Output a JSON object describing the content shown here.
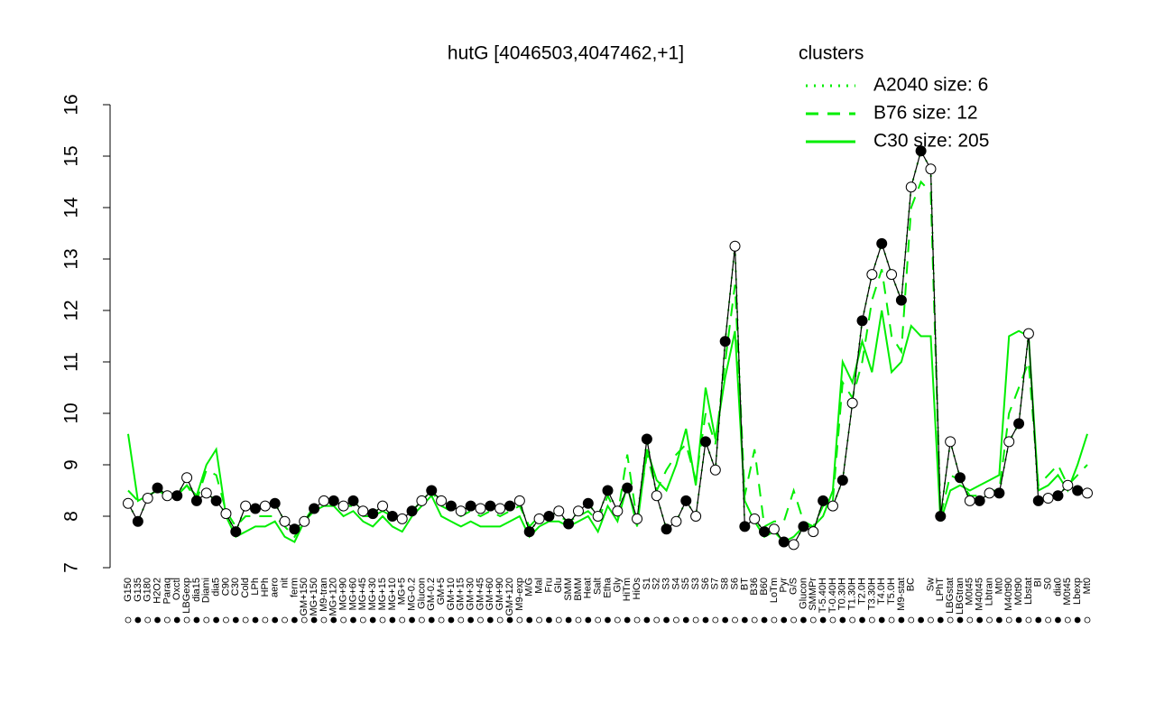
{
  "chart_data": {
    "type": "line",
    "title": "hutG [4046503,4047462,+1]",
    "legend_title": "clusters",
    "legend_color": "#00ee00",
    "ylim": [
      7,
      16
    ],
    "yticks": [
      7,
      8,
      9,
      10,
      11,
      12,
      13,
      14,
      15,
      16
    ],
    "categories": [
      "G150",
      "G135",
      "G180",
      "H2O2",
      "Paraq",
      "Oxctl",
      "LBGexp",
      "dia15",
      "Diami",
      "dia5",
      "C90",
      "C30",
      "Cold",
      "LPh",
      "HPh",
      "aero",
      "nit",
      "ferm",
      "GM+150",
      "MG+150",
      "M9-tran",
      "MG+120",
      "MG+90",
      "MG+60",
      "MG+45",
      "MG+30",
      "MG+15",
      "MG+10",
      "MG+5",
      "MG-0.2",
      "Glucon",
      "GM-0.2",
      "GM+5",
      "GM+10",
      "GM+15",
      "GM+30",
      "GM+45",
      "GM+60",
      "GM+90",
      "GM+120",
      "M9-exp",
      "M/G",
      "Mal",
      "Fru",
      "Glu",
      "SMM",
      "BMM",
      "Heat",
      "Salt",
      "Etha",
      "Gly",
      "HiTm",
      "HiOs",
      "S1",
      "S2",
      "S3",
      "S4",
      "S5",
      "S3",
      "S6",
      "S7",
      "S8",
      "S6",
      "BT",
      "B36",
      "B60",
      "LoTm",
      "Pyr",
      "G/S",
      "Glucon",
      "SMMPr",
      "T-5.40H",
      "T-0.40H",
      "T0.30H",
      "T1.30H",
      "T2.0H",
      "T3.30H",
      "T4.0H",
      "T5.0H",
      "M9-stat",
      "BC",
      null,
      "Sw",
      "LPhT",
      "LBGstat",
      "LBGtran",
      "M0t45",
      "M40t45",
      "Lbtran",
      "Mt0",
      "M40t90",
      "M0t90",
      "Lbstat",
      "BI",
      "S0",
      "dia0",
      "M0t45",
      "Lbexp",
      "Mt0"
    ],
    "values": [
      8.25,
      7.9,
      8.35,
      8.55,
      8.4,
      8.4,
      8.75,
      8.3,
      8.45,
      8.3,
      8.05,
      7.7,
      8.2,
      8.15,
      8.2,
      8.25,
      7.9,
      7.75,
      7.9,
      8.15,
      8.3,
      8.3,
      8.2,
      8.3,
      8.1,
      8.05,
      8.2,
      8.0,
      7.95,
      8.1,
      8.3,
      8.5,
      8.3,
      8.2,
      8.1,
      8.2,
      8.15,
      8.2,
      8.15,
      8.2,
      8.3,
      7.7,
      7.95,
      8.0,
      8.1,
      7.85,
      8.1,
      8.25,
      8.0,
      8.5,
      8.1,
      8.55,
      7.95,
      9.5,
      8.4,
      7.75,
      7.9,
      8.3,
      8.0,
      9.45,
      8.9,
      11.4,
      13.25,
      7.8,
      7.95,
      7.7,
      7.75,
      7.5,
      7.45,
      7.8,
      7.7,
      8.3,
      8.2,
      8.7,
      10.2,
      11.8,
      12.7,
      13.3,
      12.7,
      12.2,
      14.4,
      15.1,
      14.75,
      8.0,
      9.45,
      8.75,
      8.3,
      8.3,
      8.45,
      8.45,
      9.45,
      9.8,
      11.55,
      8.3,
      8.35,
      8.4,
      8.6,
      8.5,
      8.45
    ],
    "color": "#000000",
    "series": [
      {
        "name": "A2040 size: 6",
        "color": "#00ee00",
        "dash": "dotted",
        "values": [
          8.25,
          7.9,
          8.35,
          8.55,
          8.4,
          8.4,
          8.75,
          8.3,
          8.45,
          8.3,
          8.05,
          7.7,
          8.2,
          8.15,
          8.2,
          8.25,
          7.9,
          7.75,
          7.9,
          8.15,
          8.3,
          8.3,
          8.2,
          8.3,
          8.1,
          8.05,
          8.2,
          8.0,
          7.95,
          8.1,
          8.3,
          8.5,
          8.3,
          8.2,
          8.1,
          8.2,
          8.15,
          8.2,
          8.15,
          8.2,
          8.3,
          7.7,
          7.95,
          8.0,
          8.1,
          7.85,
          8.1,
          8.25,
          8.0,
          8.5,
          8.1,
          8.55,
          7.95,
          9.5,
          8.4,
          7.75,
          7.9,
          8.3,
          8.0,
          9.45,
          8.9,
          11.4,
          13.25,
          7.8,
          7.95,
          7.7,
          7.75,
          7.5,
          7.45,
          7.8,
          7.7,
          8.3,
          8.2,
          8.7,
          10.2,
          11.8,
          12.7,
          13.3,
          12.7,
          12.2,
          14.4,
          15.1,
          14.75,
          8.0,
          9.45,
          8.75,
          8.3,
          8.3,
          8.45,
          8.45,
          9.45,
          9.8,
          11.55,
          8.3,
          8.35,
          8.4,
          8.6,
          8.5,
          8.45
        ]
      },
      {
        "name": "B76 size: 12",
        "color": "#00ee00",
        "dash": "dashed",
        "values": [
          8.5,
          8.3,
          8.4,
          8.5,
          8.4,
          8.4,
          8.6,
          8.3,
          8.9,
          8.8,
          8.1,
          7.8,
          8.0,
          8.0,
          8.0,
          8.0,
          7.8,
          7.6,
          7.9,
          8.2,
          8.3,
          8.3,
          8.2,
          8.2,
          8.0,
          8.0,
          8.1,
          8.0,
          7.9,
          8.1,
          8.3,
          8.5,
          8.2,
          8.1,
          8.0,
          8.1,
          8.0,
          8.1,
          8.0,
          8.1,
          8.2,
          7.8,
          8.0,
          8.0,
          8.0,
          7.9,
          8.0,
          8.1,
          7.9,
          8.4,
          8.0,
          9.2,
          7.9,
          9.2,
          8.5,
          8.9,
          9.2,
          9.4,
          8.7,
          10.0,
          9.4,
          11.0,
          12.5,
          8.4,
          9.3,
          7.8,
          7.9,
          7.9,
          8.5,
          7.9,
          7.8,
          8.2,
          8.3,
          10.6,
          10.3,
          11.0,
          12.2,
          12.8,
          11.5,
          11.2,
          14.0,
          14.5,
          14.3,
          8.0,
          8.8,
          8.7,
          8.4,
          8.4,
          8.5,
          8.5,
          10.0,
          10.5,
          11.0,
          8.6,
          8.8,
          9.0,
          8.6,
          8.8,
          9.0
        ]
      },
      {
        "name": "C30 size: 205",
        "color": "#00ee00",
        "dash": "solid",
        "values": [
          9.6,
          8.3,
          8.4,
          8.5,
          8.4,
          8.4,
          8.6,
          8.4,
          9.0,
          9.3,
          8.0,
          7.6,
          7.7,
          7.8,
          7.8,
          7.9,
          7.6,
          7.5,
          7.9,
          8.1,
          8.2,
          8.2,
          8.0,
          8.1,
          7.9,
          7.8,
          8.0,
          7.8,
          7.7,
          8.0,
          8.2,
          8.4,
          8.0,
          7.9,
          7.8,
          7.9,
          7.8,
          7.8,
          7.8,
          7.9,
          8.0,
          7.6,
          7.8,
          7.9,
          7.9,
          7.8,
          7.9,
          8.0,
          7.7,
          8.2,
          7.9,
          8.6,
          7.8,
          9.3,
          8.7,
          8.5,
          9.0,
          9.7,
          8.6,
          10.5,
          9.5,
          10.7,
          11.6,
          8.3,
          7.9,
          7.6,
          7.7,
          7.5,
          7.6,
          7.8,
          7.8,
          8.0,
          8.5,
          11.0,
          10.6,
          11.4,
          10.8,
          12.0,
          10.8,
          11.0,
          11.7,
          11.5,
          11.5,
          7.9,
          8.5,
          8.6,
          8.5,
          8.6,
          8.7,
          8.8,
          11.5,
          11.6,
          11.5,
          8.5,
          8.6,
          8.8,
          8.5,
          9.0,
          9.6
        ]
      }
    ]
  }
}
